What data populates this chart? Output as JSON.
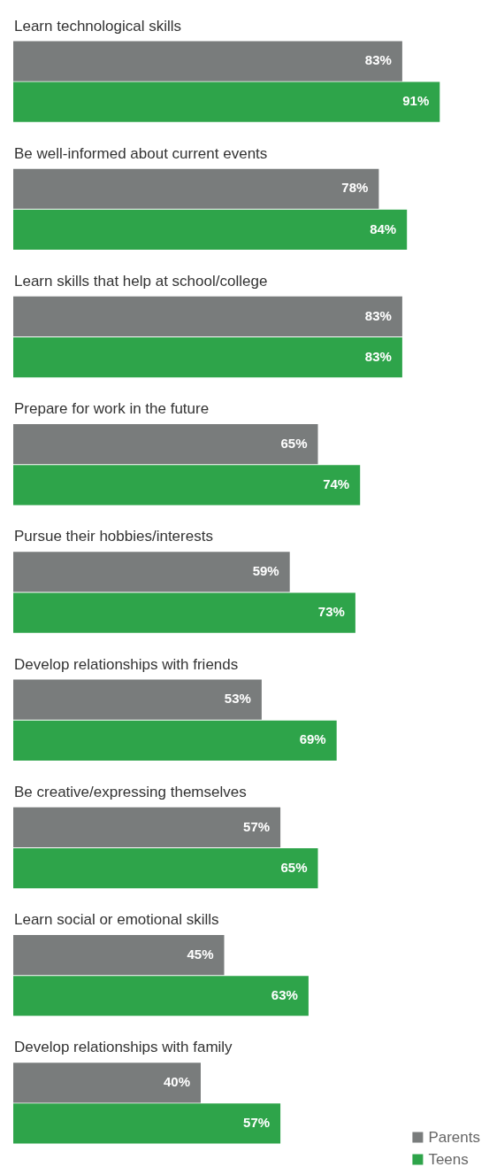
{
  "chart_data": {
    "type": "bar",
    "orientation": "horizontal",
    "categories": [
      "Learn technological skills",
      "Be well-informed about current events",
      "Learn skills that help at school/college",
      "Prepare for work in the future",
      "Pursue their hobbies/interests",
      "Develop relationships with friends",
      "Be creative/expressing themselves",
      "Learn social or emotional skills",
      "Develop relationships with family"
    ],
    "series": [
      {
        "name": "Parents",
        "color": "#797c7c",
        "value_labels": [
          "83%",
          "78%",
          "83%",
          "65%",
          "59%",
          "53%",
          "57%",
          "45%",
          "40%"
        ],
        "values": [
          83,
          78,
          83,
          65,
          59,
          53,
          57,
          45,
          40
        ]
      },
      {
        "name": "Teens",
        "color": "#2ea44a",
        "value_labels": [
          "91%",
          "84%",
          "83%",
          "74%",
          "73%",
          "69%",
          "65%",
          "63%",
          "57%"
        ],
        "values": [
          91,
          84,
          83,
          74,
          73,
          69,
          65,
          63,
          57
        ]
      }
    ],
    "legend": "bottom right",
    "grid": false
  }
}
